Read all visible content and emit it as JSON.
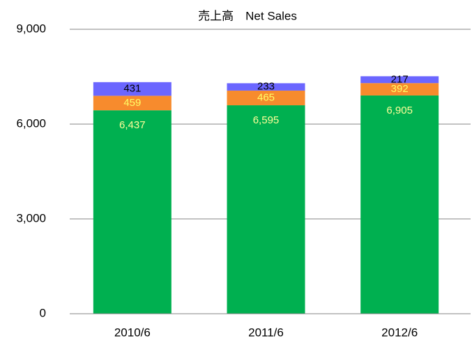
{
  "chart_data": {
    "type": "stacked_bar",
    "title": "売上高　Net Sales",
    "categories": [
      "2010/6",
      "2011/6",
      "2012/6"
    ],
    "series": [
      {
        "color": "#00b050",
        "label_color": "#ffff99",
        "values": [
          6437,
          6595,
          6905
        ],
        "value_labels": [
          "6,437",
          "6,595",
          "6,905"
        ]
      },
      {
        "color": "#f78b2d",
        "label_color": "#ffff66",
        "values": [
          459,
          465,
          392
        ],
        "value_labels": [
          "459",
          "465",
          "392"
        ]
      },
      {
        "color": "#6b66ff",
        "label_color": "#000000",
        "values": [
          431,
          233,
          217
        ],
        "value_labels": [
          "431",
          "233",
          "217"
        ]
      }
    ],
    "ylim": [
      0,
      9000
    ],
    "yticks": [
      0,
      {
        "value": 3000,
        "label": "3,000"
      },
      {
        "value": 6000,
        "label": "6,000"
      },
      {
        "value": 9000,
        "label": "9,000"
      }
    ],
    "grid": true
  }
}
